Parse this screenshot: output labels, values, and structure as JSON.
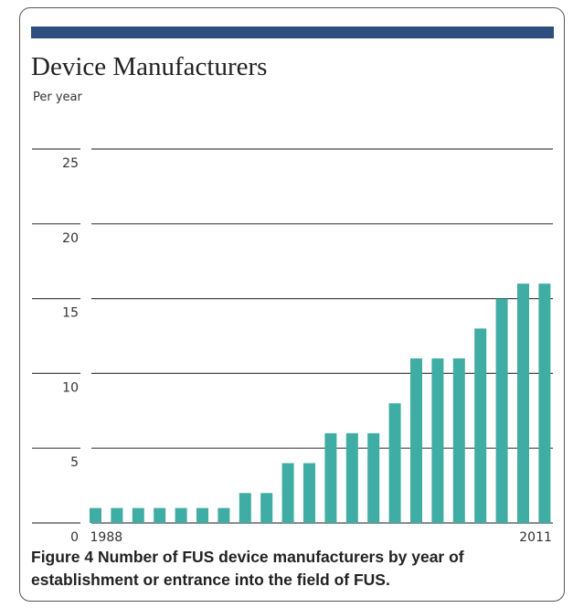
{
  "chart_data": {
    "type": "bar",
    "title": "Device Manufacturers",
    "y_label": "Per year",
    "categories": [
      "1988",
      null,
      null,
      null,
      null,
      null,
      null,
      null,
      null,
      null,
      null,
      null,
      null,
      null,
      null,
      null,
      null,
      null,
      null,
      null,
      null,
      "2011"
    ],
    "values": [
      1,
      1,
      1,
      1,
      1,
      1,
      1,
      2,
      2,
      4,
      4,
      6,
      6,
      6,
      8,
      11,
      11,
      11,
      13,
      15,
      16,
      16
    ],
    "color": "#3fada3",
    "ylim": [
      0,
      25
    ],
    "yticks": [
      0,
      5,
      10,
      15,
      20,
      25
    ],
    "grid": true
  },
  "caption": {
    "label": "Figure 4",
    "text": "Number of FUS device manufacturers by year of establishment or entrance into the field of FUS."
  }
}
